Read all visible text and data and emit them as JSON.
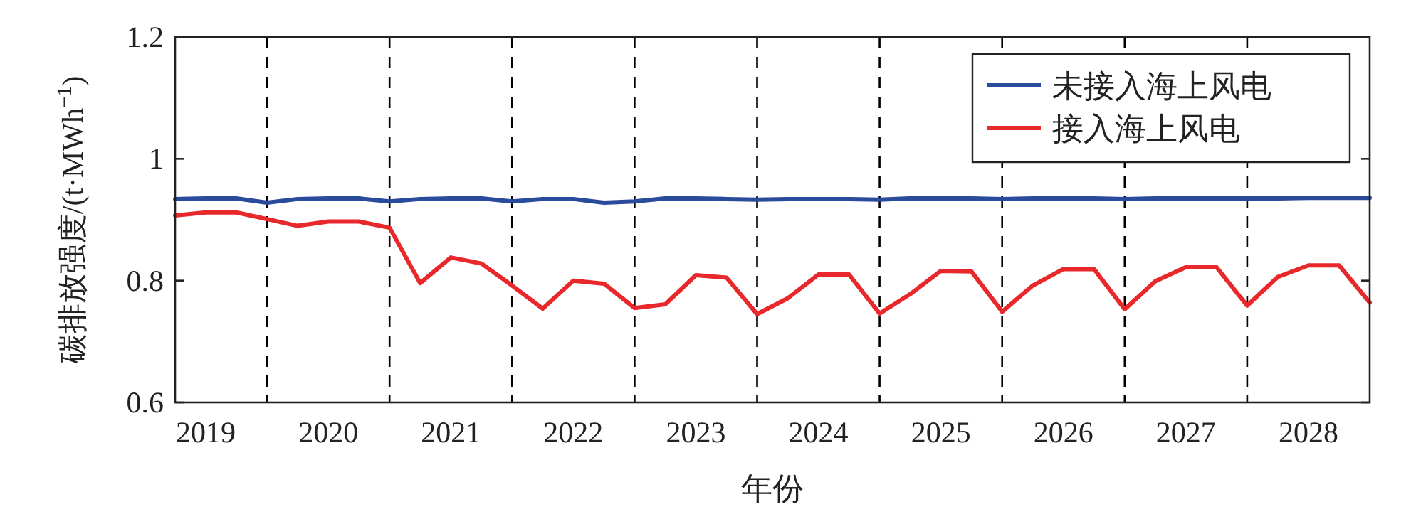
{
  "chart_data": {
    "type": "line",
    "xlabel": "年份",
    "ylabel": "碳排放强度/(t·MWh$^{−1}$)",
    "x": [
      2019.25,
      2019.5,
      2019.75,
      2020,
      2020.25,
      2020.5,
      2020.75,
      2021,
      2021.25,
      2021.5,
      2021.75,
      2022,
      2022.25,
      2022.5,
      2022.75,
      2023,
      2023.25,
      2023.5,
      2023.75,
      2024,
      2024.25,
      2024.5,
      2024.75,
      2025,
      2025.25,
      2025.5,
      2025.75,
      2026,
      2026.25,
      2026.5,
      2026.75,
      2027,
      2027.25,
      2027.5,
      2027.75,
      2028,
      2028.25,
      2028.5,
      2028.75,
      2029
    ],
    "series": [
      {
        "name": "未接入海上风电",
        "color": "#2a4a9c",
        "values": [
          0.934,
          0.935,
          0.935,
          0.928,
          0.934,
          0.935,
          0.935,
          0.93,
          0.934,
          0.935,
          0.935,
          0.93,
          0.934,
          0.934,
          0.928,
          0.93,
          0.935,
          0.935,
          0.934,
          0.933,
          0.934,
          0.934,
          0.934,
          0.933,
          0.935,
          0.935,
          0.935,
          0.934,
          0.935,
          0.935,
          0.935,
          0.934,
          0.935,
          0.935,
          0.935,
          0.935,
          0.935,
          0.936,
          0.936,
          0.936
        ]
      },
      {
        "name": "接入海上风电",
        "color": "#e8282a",
        "values": [
          0.907,
          0.912,
          0.912,
          0.901,
          0.89,
          0.897,
          0.897,
          0.887,
          0.796,
          0.838,
          0.828,
          0.792,
          0.754,
          0.8,
          0.795,
          0.755,
          0.761,
          0.809,
          0.805,
          0.745,
          0.771,
          0.81,
          0.81,
          0.746,
          0.778,
          0.816,
          0.815,
          0.749,
          0.792,
          0.819,
          0.819,
          0.753,
          0.799,
          0.822,
          0.822,
          0.759,
          0.806,
          0.825,
          0.825,
          0.764
        ]
      }
    ],
    "xlim": [
      2019.25,
      2029
    ],
    "xticks": [
      {
        "value": 2019.5,
        "label": "2019"
      },
      {
        "value": 2020.5,
        "label": "2020"
      },
      {
        "value": 2021.5,
        "label": "2021"
      },
      {
        "value": 2022.5,
        "label": "2022"
      },
      {
        "value": 2023.5,
        "label": "2023"
      },
      {
        "value": 2024.5,
        "label": "2024"
      },
      {
        "value": 2025.5,
        "label": "2025"
      },
      {
        "value": 2026.5,
        "label": "2026"
      },
      {
        "value": 2027.5,
        "label": "2027"
      },
      {
        "value": 2028.5,
        "label": "2028"
      }
    ],
    "ylim": [
      0.6,
      1.2
    ],
    "yticks": [
      0.6,
      0.8,
      1,
      1.2
    ],
    "ref_lines": [
      {
        "axis": "x",
        "value": 2020,
        "color": "#000000",
        "line_style": "dashed"
      },
      {
        "axis": "x",
        "value": 2021,
        "color": "#000000",
        "line_style": "dashed"
      },
      {
        "axis": "x",
        "value": 2022,
        "color": "#000000",
        "line_style": "dashed"
      },
      {
        "axis": "x",
        "value": 2023,
        "color": "#000000",
        "line_style": "dashed"
      },
      {
        "axis": "x",
        "value": 2024,
        "color": "#000000",
        "line_style": "dashed"
      },
      {
        "axis": "x",
        "value": 2025,
        "color": "#000000",
        "line_style": "dashed"
      },
      {
        "axis": "x",
        "value": 2026,
        "color": "#000000",
        "line_style": "dashed"
      },
      {
        "axis": "x",
        "value": 2027,
        "color": "#000000",
        "line_style": "dashed"
      },
      {
        "axis": "x",
        "value": 2028,
        "color": "#000000",
        "line_style": "dashed"
      }
    ],
    "legend": "top right",
    "grid": false,
    "marker": "none",
    "line_style": "solid"
  }
}
